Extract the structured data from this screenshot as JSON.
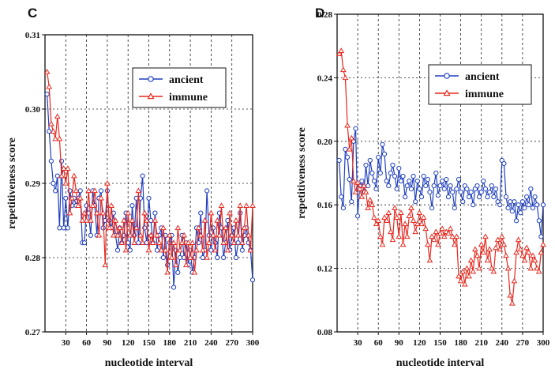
{
  "chart_data": [
    {
      "type": "line",
      "panel": "C",
      "xlabel": "nucleotide interval",
      "ylabel": "repetitiveness score",
      "xlim": [
        0,
        300
      ],
      "ylim": [
        0.27,
        0.31
      ],
      "xticks": [
        30,
        60,
        90,
        120,
        150,
        180,
        210,
        240,
        270,
        300
      ],
      "yticks": [
        0.27,
        0.28,
        0.29,
        0.3,
        0.31
      ],
      "ytick_labels": [
        "0.27",
        "0.28",
        "0.29",
        "0.30",
        "0.31"
      ],
      "vgrid": true,
      "legend_position": "top-center",
      "series": [
        {
          "name": "ancient",
          "color": "#1f3fbf",
          "marker": "circle",
          "x": [
            3,
            6,
            9,
            12,
            15,
            18,
            21,
            24,
            27,
            30,
            33,
            36,
            39,
            42,
            45,
            48,
            51,
            54,
            57,
            60,
            63,
            66,
            69,
            72,
            75,
            78,
            81,
            84,
            87,
            90,
            93,
            96,
            99,
            102,
            105,
            108,
            111,
            114,
            117,
            120,
            123,
            126,
            129,
            132,
            135,
            138,
            141,
            144,
            147,
            150,
            153,
            156,
            159,
            162,
            165,
            168,
            171,
            174,
            177,
            180,
            183,
            186,
            189,
            192,
            195,
            198,
            201,
            204,
            207,
            210,
            213,
            216,
            219,
            222,
            225,
            228,
            231,
            234,
            237,
            240,
            243,
            246,
            249,
            252,
            255,
            258,
            261,
            264,
            267,
            270,
            273,
            276,
            279,
            282,
            285,
            288,
            291,
            294,
            297,
            300
          ],
          "y": [
            0.302,
            0.297,
            0.293,
            0.29,
            0.289,
            0.291,
            0.284,
            0.293,
            0.284,
            0.288,
            0.284,
            0.289,
            0.287,
            0.288,
            0.287,
            0.288,
            0.289,
            0.282,
            0.282,
            0.287,
            0.286,
            0.283,
            0.289,
            0.287,
            0.283,
            0.288,
            0.289,
            0.284,
            0.285,
            0.289,
            0.285,
            0.284,
            0.286,
            0.283,
            0.281,
            0.284,
            0.282,
            0.283,
            0.286,
            0.282,
            0.281,
            0.287,
            0.283,
            0.288,
            0.282,
            0.288,
            0.291,
            0.284,
            0.282,
            0.288,
            0.285,
            0.282,
            0.286,
            0.281,
            0.283,
            0.284,
            0.28,
            0.283,
            0.279,
            0.282,
            0.283,
            0.276,
            0.281,
            0.278,
            0.28,
            0.283,
            0.28,
            0.282,
            0.279,
            0.281,
            0.278,
            0.28,
            0.284,
            0.282,
            0.286,
            0.28,
            0.281,
            0.289,
            0.283,
            0.281,
            0.284,
            0.282,
            0.28,
            0.286,
            0.284,
            0.28,
            0.282,
            0.285,
            0.281,
            0.283,
            0.284,
            0.28,
            0.282,
            0.286,
            0.281,
            0.283,
            0.284,
            0.282,
            0.281,
            0.277
          ]
        },
        {
          "name": "immune",
          "color": "#e8281e",
          "marker": "triangle",
          "x": [
            3,
            6,
            9,
            12,
            15,
            18,
            21,
            24,
            27,
            30,
            33,
            36,
            39,
            42,
            45,
            48,
            51,
            54,
            57,
            60,
            63,
            66,
            69,
            72,
            75,
            78,
            81,
            84,
            87,
            90,
            93,
            96,
            99,
            102,
            105,
            108,
            111,
            114,
            117,
            120,
            123,
            126,
            129,
            132,
            135,
            138,
            141,
            144,
            147,
            150,
            153,
            156,
            159,
            162,
            165,
            168,
            171,
            174,
            177,
            180,
            183,
            186,
            189,
            192,
            195,
            198,
            201,
            204,
            207,
            210,
            213,
            216,
            219,
            222,
            225,
            228,
            231,
            234,
            237,
            240,
            243,
            246,
            249,
            252,
            255,
            258,
            261,
            264,
            267,
            270,
            273,
            276,
            279,
            282,
            285,
            288,
            291,
            294,
            297,
            300
          ],
          "y": [
            0.305,
            0.303,
            0.298,
            0.297,
            0.296,
            0.299,
            0.296,
            0.291,
            0.292,
            0.29,
            0.292,
            0.286,
            0.288,
            0.291,
            0.289,
            0.287,
            0.288,
            0.285,
            0.286,
            0.285,
            0.289,
            0.285,
            0.287,
            0.289,
            0.286,
            0.283,
            0.288,
            0.286,
            0.279,
            0.29,
            0.284,
            0.287,
            0.283,
            0.285,
            0.283,
            0.284,
            0.282,
            0.285,
            0.281,
            0.286,
            0.283,
            0.285,
            0.282,
            0.284,
            0.289,
            0.283,
            0.282,
            0.286,
            0.285,
            0.281,
            0.283,
            0.282,
            0.285,
            0.283,
            0.282,
            0.281,
            0.284,
            0.281,
            0.278,
            0.283,
            0.28,
            0.282,
            0.279,
            0.284,
            0.281,
            0.282,
            0.283,
            0.279,
            0.282,
            0.28,
            0.282,
            0.278,
            0.281,
            0.284,
            0.283,
            0.281,
            0.285,
            0.28,
            0.282,
            0.286,
            0.283,
            0.281,
            0.285,
            0.283,
            0.287,
            0.282,
            0.284,
            0.281,
            0.286,
            0.283,
            0.282,
            0.285,
            0.283,
            0.287,
            0.282,
            0.284,
            0.287,
            0.283,
            0.281,
            0.287
          ]
        }
      ]
    },
    {
      "type": "line",
      "panel": "D",
      "xlabel": "nucleotide interval",
      "ylabel": "repetitiveness score",
      "xlim": [
        0,
        300
      ],
      "ylim": [
        0.08,
        0.28
      ],
      "xticks": [
        30,
        60,
        90,
        120,
        150,
        180,
        210,
        240,
        270,
        300
      ],
      "yticks": [
        0.08,
        0.12,
        0.16,
        0.2,
        0.24,
        0.28
      ],
      "ytick_labels": [
        "0.08",
        "0.12",
        "0.16",
        "0.20",
        "0.24",
        "0.28"
      ],
      "vgrid": true,
      "legend_position": "top-right",
      "series": [
        {
          "name": "ancient",
          "color": "#1f3fbf",
          "marker": "circle",
          "x": [
            3,
            6,
            9,
            12,
            15,
            18,
            21,
            24,
            27,
            30,
            33,
            36,
            39,
            42,
            45,
            48,
            51,
            54,
            57,
            60,
            63,
            66,
            69,
            72,
            75,
            78,
            81,
            84,
            87,
            90,
            93,
            96,
            99,
            102,
            105,
            108,
            111,
            114,
            117,
            120,
            123,
            126,
            129,
            132,
            135,
            138,
            141,
            144,
            147,
            150,
            153,
            156,
            159,
            162,
            165,
            168,
            171,
            174,
            177,
            180,
            183,
            186,
            189,
            192,
            195,
            198,
            201,
            204,
            207,
            210,
            213,
            216,
            219,
            222,
            225,
            228,
            231,
            234,
            237,
            240,
            243,
            246,
            249,
            252,
            255,
            258,
            261,
            264,
            267,
            270,
            273,
            276,
            279,
            282,
            285,
            288,
            291,
            294,
            297,
            300
          ],
          "y": [
            0.188,
            0.165,
            0.158,
            0.195,
            0.19,
            0.176,
            0.162,
            0.2,
            0.208,
            0.153,
            0.172,
            0.175,
            0.168,
            0.185,
            0.172,
            0.188,
            0.18,
            0.175,
            0.17,
            0.19,
            0.18,
            0.198,
            0.192,
            0.175,
            0.172,
            0.18,
            0.185,
            0.178,
            0.17,
            0.183,
            0.175,
            0.178,
            0.165,
            0.172,
            0.175,
            0.17,
            0.178,
            0.162,
            0.175,
            0.17,
            0.165,
            0.178,
            0.172,
            0.176,
            0.168,
            0.158,
            0.172,
            0.18,
            0.166,
            0.172,
            0.175,
            0.17,
            0.176,
            0.165,
            0.172,
            0.168,
            0.158,
            0.17,
            0.176,
            0.168,
            0.162,
            0.172,
            0.17,
            0.165,
            0.168,
            0.16,
            0.17,
            0.172,
            0.165,
            0.168,
            0.175,
            0.17,
            0.165,
            0.168,
            0.172,
            0.165,
            0.17,
            0.162,
            0.16,
            0.188,
            0.186,
            0.165,
            0.158,
            0.162,
            0.156,
            0.162,
            0.15,
            0.16,
            0.155,
            0.162,
            0.158,
            0.165,
            0.16,
            0.17,
            0.158,
            0.165,
            0.16,
            0.15,
            0.14,
            0.16
          ]
        },
        {
          "name": "immune",
          "color": "#e8281e",
          "marker": "triangle",
          "x": [
            3,
            6,
            9,
            12,
            15,
            18,
            21,
            24,
            27,
            30,
            33,
            36,
            39,
            42,
            45,
            48,
            51,
            54,
            57,
            60,
            63,
            66,
            69,
            72,
            75,
            78,
            81,
            84,
            87,
            90,
            93,
            96,
            99,
            102,
            105,
            108,
            111,
            114,
            117,
            120,
            123,
            126,
            129,
            132,
            135,
            138,
            141,
            144,
            147,
            150,
            153,
            156,
            159,
            162,
            165,
            168,
            171,
            174,
            177,
            180,
            183,
            186,
            189,
            192,
            195,
            198,
            201,
            204,
            207,
            210,
            213,
            216,
            219,
            222,
            225,
            228,
            231,
            234,
            237,
            240,
            243,
            246,
            249,
            252,
            255,
            258,
            261,
            264,
            267,
            270,
            273,
            276,
            279,
            282,
            285,
            288,
            291,
            294,
            297,
            300
          ],
          "y": [
            0.255,
            0.257,
            0.245,
            0.24,
            0.21,
            0.195,
            0.202,
            0.175,
            0.168,
            0.174,
            0.17,
            0.165,
            0.172,
            0.168,
            0.158,
            0.163,
            0.16,
            0.152,
            0.148,
            0.15,
            0.14,
            0.135,
            0.152,
            0.15,
            0.155,
            0.143,
            0.138,
            0.158,
            0.152,
            0.14,
            0.155,
            0.135,
            0.148,
            0.14,
            0.153,
            0.158,
            0.15,
            0.143,
            0.148,
            0.155,
            0.148,
            0.152,
            0.145,
            0.135,
            0.125,
            0.14,
            0.138,
            0.143,
            0.135,
            0.142,
            0.145,
            0.14,
            0.143,
            0.142,
            0.145,
            0.14,
            0.135,
            0.14,
            0.115,
            0.112,
            0.118,
            0.11,
            0.12,
            0.115,
            0.125,
            0.118,
            0.132,
            0.128,
            0.12,
            0.135,
            0.13,
            0.14,
            0.125,
            0.132,
            0.12,
            0.118,
            0.133,
            0.138,
            0.132,
            0.14,
            0.135,
            0.128,
            0.12,
            0.103,
            0.098,
            0.112,
            0.13,
            0.138,
            0.132,
            0.128,
            0.125,
            0.133,
            0.13,
            0.12,
            0.128,
            0.125,
            0.12,
            0.118,
            0.13,
            0.135
          ]
        }
      ]
    }
  ]
}
